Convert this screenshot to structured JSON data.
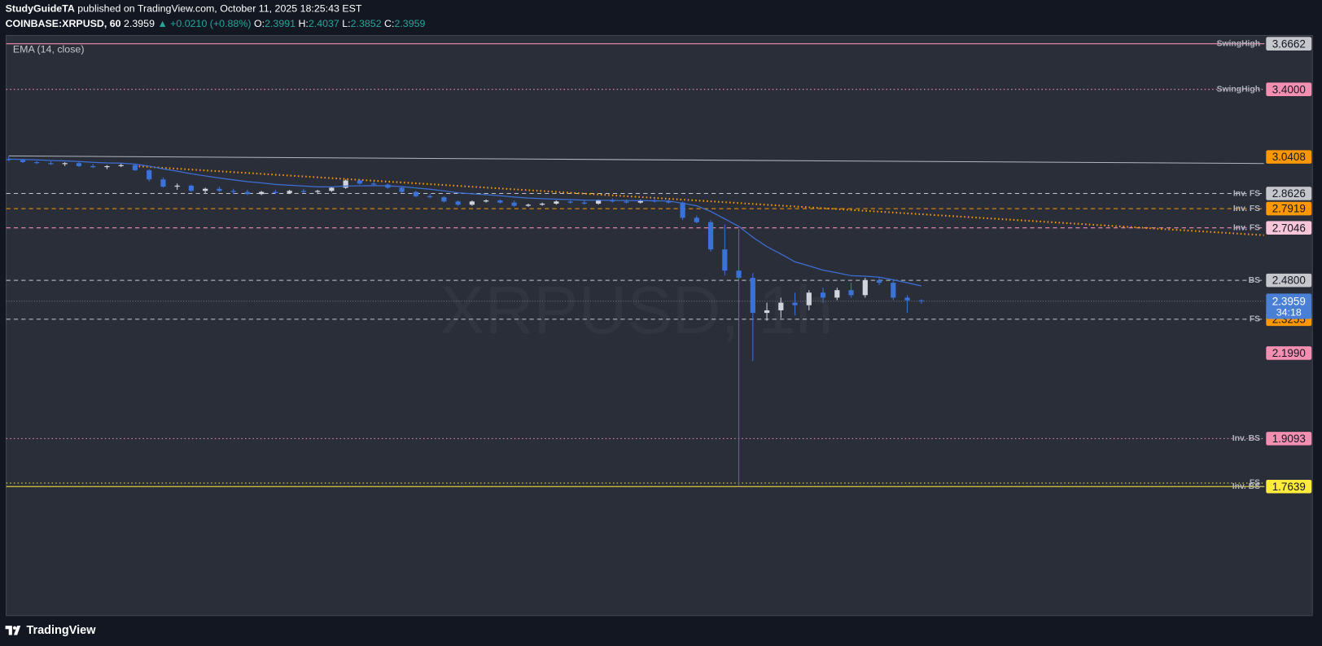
{
  "header": {
    "author": "StudyGuideTA",
    "published": "published on TradingView.com, October 11, 2025 18:25:43 EST",
    "symbol": "COINBASE:XRPUSD, 60",
    "last": 2.3959,
    "change": "▲ +0.0210 (+0.88%)",
    "fields": [
      {
        "label": "O:",
        "value": 2.3991
      },
      {
        "label": "H:",
        "value": 2.4037
      },
      {
        "label": "L:",
        "value": 2.3852
      },
      {
        "label": "C:",
        "value": 2.3959
      }
    ]
  },
  "footer": {
    "brand": "TradingView"
  },
  "chart_data": {
    "type": "candlestick",
    "watermark": "XRPUSD, 1h",
    "log_scale": true,
    "ylim": [
      1.425,
      3.717
    ],
    "up_color": "#d1d4dc",
    "down_color": "#3a72d8",
    "candles": {
      "open": [
        3.03,
        3.025,
        3.015,
        3.01,
        3.005,
        3.01,
        2.995,
        2.99,
        2.995,
        3.0,
        2.975,
        2.93,
        2.895,
        2.9,
        2.875,
        2.885,
        2.875,
        2.87,
        2.86,
        2.87,
        2.865,
        2.875,
        2.87,
        2.875,
        2.89,
        2.925,
        2.91,
        2.905,
        2.89,
        2.87,
        2.85,
        2.845,
        2.825,
        2.81,
        2.825,
        2.83,
        2.82,
        2.805,
        2.81,
        2.815,
        2.825,
        2.82,
        2.815,
        2.83,
        2.825,
        2.82,
        2.83,
        2.825,
        2.82,
        2.75,
        2.73,
        2.61,
        2.52,
        2.49,
        2.35,
        2.36,
        2.39,
        2.38,
        2.43,
        2.41,
        2.44,
        2.42,
        2.48,
        2.47,
        2.41,
        2.3991
      ],
      "high": [
        3.045,
        3.03,
        3.02,
        3.02,
        3.015,
        3.015,
        3.005,
        3.0,
        3.01,
        3.005,
        2.98,
        2.94,
        2.91,
        2.905,
        2.89,
        2.895,
        2.885,
        2.88,
        2.875,
        2.88,
        2.88,
        2.885,
        2.88,
        2.895,
        2.93,
        2.93,
        2.92,
        2.91,
        2.895,
        2.875,
        2.86,
        2.85,
        2.83,
        2.83,
        2.835,
        2.835,
        2.83,
        2.815,
        2.82,
        2.83,
        2.83,
        2.83,
        2.835,
        2.84,
        2.835,
        2.835,
        2.84,
        2.835,
        2.825,
        2.76,
        2.74,
        2.72,
        2.7,
        2.51,
        2.39,
        2.41,
        2.43,
        2.44,
        2.45,
        2.45,
        2.47,
        2.49,
        2.49,
        2.48,
        2.42,
        2.4037
      ],
      "low": [
        3.02,
        3.01,
        3.005,
        3.0,
        2.995,
        2.99,
        2.985,
        2.98,
        2.99,
        2.97,
        2.92,
        2.89,
        2.88,
        2.87,
        2.865,
        2.87,
        2.86,
        2.855,
        2.855,
        2.86,
        2.86,
        2.865,
        2.86,
        2.87,
        2.885,
        2.905,
        2.9,
        2.885,
        2.865,
        2.845,
        2.84,
        2.82,
        2.805,
        2.805,
        2.82,
        2.815,
        2.8,
        2.8,
        2.805,
        2.81,
        2.815,
        2.81,
        2.81,
        2.82,
        2.815,
        2.815,
        2.82,
        2.815,
        2.74,
        2.725,
        2.6,
        2.5,
        1.7639,
        2.17,
        2.32,
        2.33,
        2.34,
        2.36,
        2.39,
        2.4,
        2.41,
        2.41,
        2.46,
        2.4,
        2.35,
        2.3852
      ],
      "close": [
        3.025,
        3.015,
        3.01,
        3.005,
        3.01,
        2.995,
        2.99,
        2.995,
        3.0,
        2.975,
        2.93,
        2.895,
        2.9,
        2.875,
        2.885,
        2.875,
        2.87,
        2.86,
        2.87,
        2.865,
        2.875,
        2.87,
        2.875,
        2.89,
        2.925,
        2.91,
        2.905,
        2.89,
        2.87,
        2.85,
        2.845,
        2.825,
        2.81,
        2.825,
        2.83,
        2.82,
        2.805,
        2.81,
        2.815,
        2.825,
        2.82,
        2.815,
        2.83,
        2.825,
        2.82,
        2.83,
        2.825,
        2.82,
        2.75,
        2.73,
        2.61,
        2.52,
        2.49,
        2.35,
        2.36,
        2.39,
        2.38,
        2.43,
        2.41,
        2.44,
        2.42,
        2.48,
        2.47,
        2.41,
        2.3991,
        2.3959
      ]
    },
    "ema": {
      "name": "EMA (14, close)",
      "color": "#3d6fd6",
      "values": [
        3.03,
        3.028,
        3.026,
        3.023,
        3.021,
        3.018,
        3.014,
        3.011,
        3.01,
        3.005,
        2.995,
        2.981,
        2.97,
        2.957,
        2.947,
        2.937,
        2.928,
        2.919,
        2.913,
        2.906,
        2.902,
        2.898,
        2.894,
        2.894,
        2.898,
        2.899,
        2.9,
        2.899,
        2.895,
        2.889,
        2.883,
        2.875,
        2.866,
        2.861,
        2.857,
        2.852,
        2.846,
        2.841,
        2.838,
        2.836,
        2.834,
        2.831,
        2.831,
        2.83,
        2.829,
        2.829,
        2.828,
        2.827,
        2.817,
        2.805,
        2.779,
        2.745,
        2.711,
        2.663,
        2.622,
        2.59,
        2.557,
        2.54,
        2.522,
        2.511,
        2.499,
        2.497,
        2.493,
        2.482,
        2.47,
        2.457
      ]
    },
    "trendlines": [
      {
        "x": [
          0,
          89.4
        ],
        "values": [
          3.046,
          3.008
        ],
        "color": "#b2b5be",
        "style": "solid"
      },
      {
        "x": [
          9,
          89.4
        ],
        "values": [
          2.995,
          2.672
        ],
        "color": "#ff9800",
        "style": "dotted"
      }
    ],
    "levels": [
      {
        "value": 3.6662,
        "tag": "SwingHigh",
        "color": "#f48fb1",
        "style": "solid",
        "label_color": "#c5c7cc"
      },
      {
        "value": 3.4,
        "value_label": "3.4000",
        "tag": "SwingHigh",
        "color": "#f48fb1",
        "style": "dotted",
        "label_color": "#f48fb1"
      },
      {
        "value": 3.0408,
        "label_color": "#ff9800"
      },
      {
        "value": 2.8626,
        "tag": "Inv. FS",
        "color": "#c5c7cc",
        "style": "dashed",
        "label_color": "#c5c7cc"
      },
      {
        "value": 2.7919,
        "tag": "Inv. FS",
        "color": "#ff9800",
        "style": "dashed",
        "label_color": "#ff9800"
      },
      {
        "value": 2.7046,
        "tag": "Inv. FS",
        "color": "#f48fb1",
        "style": "dashed",
        "label_color": "#f8c6d8"
      },
      {
        "value": 2.48,
        "value_label": "2.4800",
        "tag": "BS",
        "color": "#c5c7cc",
        "style": "dashed",
        "label_color": "#c5c7cc"
      },
      {
        "value": 2.3255,
        "tag": "FS",
        "color": "#c5c7cc",
        "style": "dashed",
        "label_color": "#ff9800"
      },
      {
        "value": 2.199,
        "value_label": "2.1990",
        "label_color": "#f48fb1"
      },
      {
        "value": 1.9093,
        "tag": "Inv. BS",
        "color": "#f48fb1",
        "style": "dotted",
        "label_color": "#f48fb1"
      },
      {
        "value": 1.774,
        "tag": "FS",
        "color": "#ffeb3b",
        "style": "dotted"
      },
      {
        "value": 1.7639,
        "tag": "Inv. BS",
        "color": "#ffeb3b",
        "style": "solid",
        "label_color": "#ffeb3b"
      }
    ],
    "current": {
      "value": 2.3959,
      "countdown": "34:18",
      "color": "#4a7fd6"
    }
  }
}
